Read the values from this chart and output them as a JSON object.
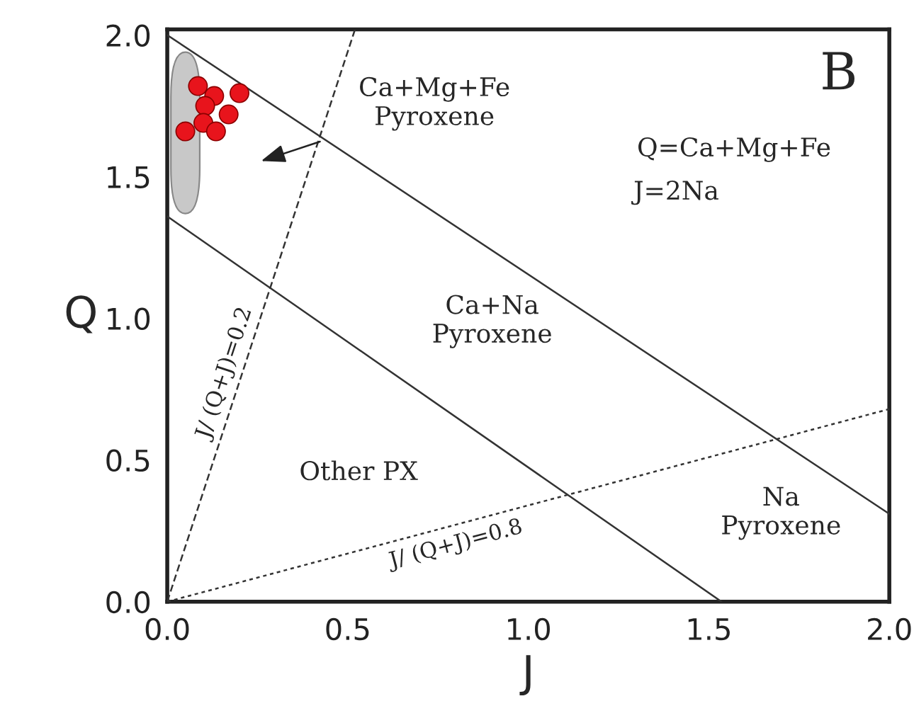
{
  "chart_data": {
    "type": "scatter",
    "xlabel": "J",
    "ylabel": "Q",
    "xlim": [
      0,
      2.0
    ],
    "ylim": [
      0,
      2.02
    ],
    "xticks": [
      {
        "value": 0,
        "label": "0.0"
      },
      0.5,
      {
        "value": 1,
        "label": "1.0"
      },
      1.5,
      {
        "value": 2,
        "label": "2.0"
      }
    ],
    "yticks": [
      {
        "value": 0,
        "label": "0.0"
      },
      0.5,
      {
        "value": 1,
        "label": "1.0"
      },
      1.5,
      {
        "value": 2,
        "label": "2.0"
      }
    ],
    "grid": false,
    "legend": false,
    "series": [
      {
        "marker": "circle",
        "color": "#e8141c",
        "x": [
          0.085,
          0.13,
          0.2,
          0.105,
          0.17,
          0.1,
          0.05,
          0.135
        ],
        "values": [
          1.82,
          1.785,
          1.795,
          1.75,
          1.72,
          1.69,
          1.66,
          1.66
        ]
      },
      {
        "type": "line",
        "color": "#333333",
        "line_style": "solid",
        "x": [
          0,
          2.0
        ],
        "values": [
          2.0,
          0.31
        ]
      },
      {
        "type": "line",
        "color": "#333333",
        "line_style": "solid",
        "x": [
          0,
          1.535
        ],
        "values": [
          1.36,
          0
        ]
      },
      {
        "type": "line",
        "name": "J/ (Q+J)=0.2",
        "color": "#333333",
        "line_style": "dashed",
        "x": [
          0,
          0.52
        ],
        "values": [
          0,
          2.02
        ]
      },
      {
        "type": "line",
        "name": "J/ (Q+J)=0.8",
        "color": "#333333",
        "line_style": "dotted",
        "x": [
          0,
          2.0
        ],
        "values": [
          0,
          0.68
        ]
      }
    ],
    "annotations": [
      "Ca+Mg+Fe\nPyroxene",
      "B",
      "Q=Ca+Mg+Fe",
      "J=2Na",
      "Ca+Na\nPyroxene",
      "Other PX",
      "Na\nPyroxene"
    ]
  }
}
